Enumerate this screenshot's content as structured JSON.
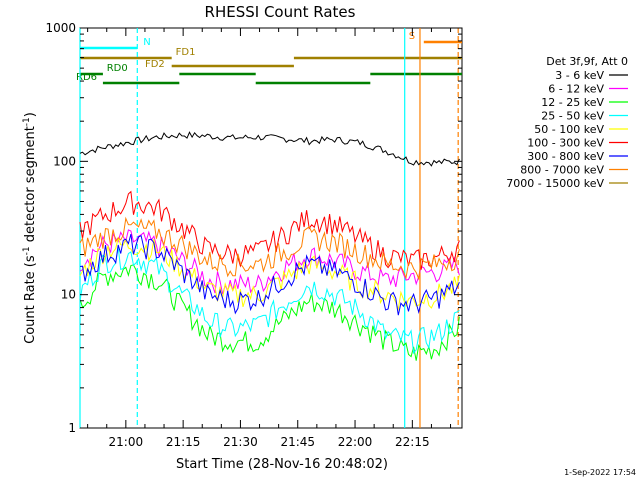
{
  "chart_data": {
    "type": "line",
    "title": "RHESSI Count Rates",
    "xlabel": "Start Time (28-Nov-16 20:48:02)",
    "ylabel_main": "Count Rate (s",
    "ylabel_sup1": "-1",
    "ylabel_mid": " detector segment",
    "ylabel_sup2": "-1",
    "ylabel_end": ")",
    "yscale": "log",
    "ylim": [
      1,
      1000
    ],
    "xlim_minutes": [
      0,
      100
    ],
    "x_ticks": [
      {
        "label": "21:00",
        "minute": 12
      },
      {
        "label": "21:15",
        "minute": 27
      },
      {
        "label": "21:30",
        "minute": 42
      },
      {
        "label": "21:45",
        "minute": 57
      },
      {
        "label": "22:00",
        "minute": 72
      },
      {
        "label": "22:15",
        "minute": 87
      }
    ],
    "y_ticks": [
      {
        "label": "1",
        "value": 1
      },
      {
        "label": "10",
        "value": 10
      },
      {
        "label": "100",
        "value": 100
      },
      {
        "label": "1000",
        "value": 1000
      }
    ],
    "legend_header": "Det 3f,9f, Att 0",
    "series": [
      {
        "name": "3 - 6 keV",
        "color": "#000000",
        "values": [
          115,
          128,
          140,
          152,
          158,
          155,
          150,
          152,
          148,
          142,
          146,
          138,
          120,
          100,
          98,
          100
        ]
      },
      {
        "name": "6 - 12 keV",
        "color": "#ff00ff",
        "values": [
          18,
          24,
          26,
          24,
          18,
          13,
          12,
          12,
          16,
          20,
          18,
          15,
          13,
          14,
          15,
          17
        ]
      },
      {
        "name": "12 - 25 keV",
        "color": "#00ff00",
        "values": [
          8,
          14,
          16,
          13,
          8,
          5,
          4.5,
          4.5,
          6.5,
          9,
          8,
          6,
          4.5,
          3.6,
          4,
          6
        ]
      },
      {
        "name": "25 - 50 keV",
        "color": "#00ffff",
        "values": [
          10,
          18,
          20,
          16,
          10,
          6.5,
          5.5,
          6,
          8.5,
          12,
          10,
          7.5,
          5,
          4.5,
          5,
          7
        ]
      },
      {
        "name": "50 - 100 keV",
        "color": "#ffff00",
        "values": [
          14,
          22,
          24,
          22,
          16,
          11,
          10,
          10,
          13,
          17,
          15,
          12,
          10,
          9,
          10,
          12
        ]
      },
      {
        "name": "100 - 300 keV",
        "color": "#ff0000",
        "values": [
          30,
          40,
          50,
          45,
          32,
          22,
          20,
          21,
          28,
          38,
          34,
          26,
          20,
          18,
          19,
          23
        ]
      },
      {
        "name": "300 - 800 keV",
        "color": "#0000ff",
        "values": [
          14,
          20,
          24,
          22,
          15,
          10,
          9,
          9.5,
          13,
          17,
          15,
          12,
          9,
          8.5,
          9.5,
          12
        ]
      },
      {
        "name": "800 - 7000 keV",
        "color": "#ff8000",
        "values": [
          22,
          28,
          32,
          30,
          24,
          18,
          17,
          17,
          21,
          27,
          25,
          21,
          17,
          16,
          17,
          20
        ]
      },
      {
        "name": "7000 - 15000 keV",
        "color": "#a08000",
        "values": []
      }
    ],
    "x_minutes": [
      0,
      5,
      10,
      15,
      20,
      25,
      30,
      35,
      40,
      45,
      50,
      55,
      60,
      65,
      70,
      75
    ],
    "x_minute_step_factor": 1.3333,
    "flag_bars": [
      {
        "label": "N",
        "color": "#00ffff",
        "segments": [
          [
            0,
            15
          ]
        ]
      },
      {
        "label": "FD1",
        "color": "#a08000",
        "segments": [
          [
            0,
            24
          ],
          [
            56,
            100
          ]
        ]
      },
      {
        "label": "FD2",
        "color": "#a08000",
        "segments": [
          [
            24,
            56
          ]
        ]
      },
      {
        "label": "RD0",
        "color": "#008000",
        "segments": [
          [
            0,
            6
          ],
          [
            26,
            46
          ],
          [
            76,
            100
          ]
        ]
      },
      {
        "label": "RD6",
        "color": "#008000",
        "segments": [
          [
            6,
            26
          ],
          [
            46,
            76
          ]
        ]
      },
      {
        "label": "S",
        "color": "#ff8000",
        "segments": [
          [
            90,
            100
          ]
        ]
      }
    ],
    "vertical_markers": [
      {
        "minute": 0,
        "color": "#00ffff",
        "style": "solid"
      },
      {
        "minute": 15,
        "color": "#00ffff",
        "style": "dashed"
      },
      {
        "minute": 85,
        "color": "#00ffff",
        "style": "solid"
      },
      {
        "minute": 89,
        "color": "#ff8000",
        "style": "solid"
      },
      {
        "minute": 99,
        "color": "#ff8000",
        "style": "dashed"
      }
    ]
  },
  "footer": {
    "timestamp": "1-Sep-2022 17:54"
  }
}
